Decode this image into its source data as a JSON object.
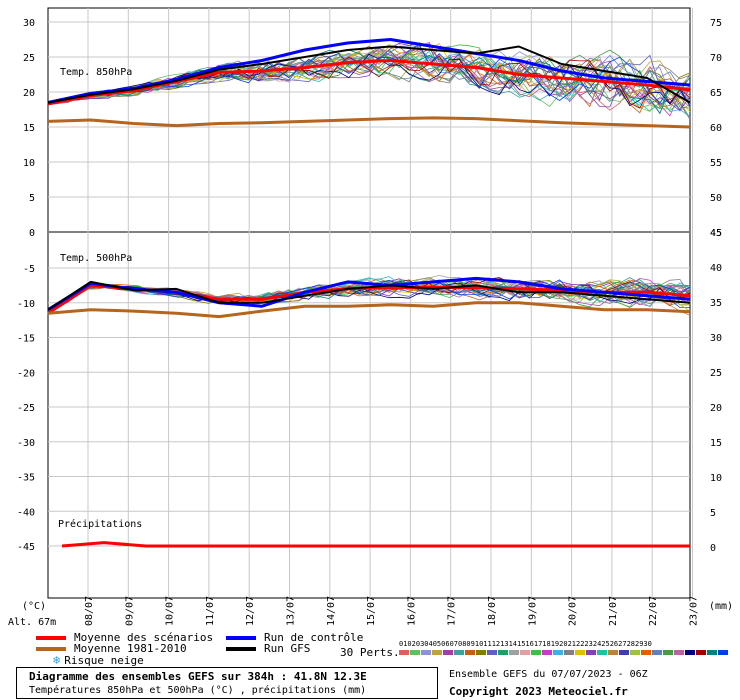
{
  "chart_data": {
    "type": "line",
    "x": [
      "08/07",
      "09/07",
      "10/07",
      "11/07",
      "12/07",
      "13/07",
      "14/07",
      "15/07",
      "16/07",
      "17/07",
      "18/07",
      "19/07",
      "20/07",
      "21/07",
      "22/07",
      "23/07"
    ],
    "panels": [
      {
        "name": "Temp. 850hPa",
        "ylabel_left": "(°C)",
        "left_range": [
          0,
          30
        ],
        "left_ticks": [
          "30",
          "25",
          "20",
          "15",
          "10",
          "5",
          "0"
        ],
        "right_ticks": [
          "75",
          "70",
          "65",
          "60",
          "55",
          "50",
          "45"
        ],
        "series": [
          {
            "name": "Moyenne des scénarios",
            "color": "#ff0000",
            "values": [
              18.3,
              19.5,
              20.2,
              21.5,
              22.8,
              23.0,
              23.5,
              24.2,
              24.5,
              24.0,
              23.5,
              22.5,
              22.0,
              21.5,
              21.0,
              20.3
            ]
          },
          {
            "name": "Moyenne 1981-2010",
            "color": "#b5651d",
            "values": [
              15.8,
              16.0,
              15.5,
              15.2,
              15.5,
              15.6,
              15.8,
              16.0,
              16.2,
              16.3,
              16.2,
              15.9,
              15.6,
              15.4,
              15.2,
              15.0
            ]
          },
          {
            "name": "Run de contrôle",
            "color": "#0000ff",
            "values": [
              18.5,
              19.8,
              20.5,
              21.8,
              23.5,
              24.5,
              26.0,
              27.0,
              27.5,
              26.5,
              25.5,
              24.5,
              23.0,
              22.0,
              21.5,
              21.0
            ]
          },
          {
            "name": "Run GFS",
            "color": "#000000",
            "values": [
              18.5,
              19.6,
              20.4,
              21.6,
              23.2,
              24.0,
              25.0,
              26.0,
              26.5,
              26.0,
              25.5,
              26.5,
              24.0,
              23.0,
              22.0,
              18.5
            ]
          }
        ]
      },
      {
        "name": "Temp. 500hPa",
        "left_range": [
          -45,
          -5
        ],
        "left_ticks": [
          "-5",
          "-10",
          "-15",
          "-20",
          "-25",
          "-30",
          "-35",
          "-40",
          "-45"
        ],
        "right_ticks": [
          "45",
          "40",
          "35",
          "30",
          "25",
          "20",
          "15",
          "10",
          "5",
          "0"
        ],
        "series": [
          {
            "name": "Moyenne des scénarios",
            "color": "#ff0000",
            "values": [
              -11.5,
              -7.5,
              -8.0,
              -8.5,
              -9.5,
              -9.5,
              -8.5,
              -8.0,
              -7.8,
              -7.8,
              -7.8,
              -8.0,
              -8.2,
              -8.5,
              -8.5,
              -9.0
            ]
          },
          {
            "name": "Moyenne 1981-2010",
            "color": "#b5651d",
            "values": [
              -11.5,
              -11.0,
              -11.2,
              -11.5,
              -12.0,
              -11.2,
              -10.5,
              -10.5,
              -10.3,
              -10.5,
              -10.0,
              -10.0,
              -10.5,
              -11.0,
              -11.0,
              -11.3
            ]
          },
          {
            "name": "Run de contrôle",
            "color": "#0000ff",
            "values": [
              -11.0,
              -7.2,
              -8.0,
              -8.5,
              -10.0,
              -10.5,
              -8.5,
              -7.0,
              -7.5,
              -7.0,
              -6.5,
              -7.0,
              -8.0,
              -8.5,
              -9.0,
              -9.5
            ]
          },
          {
            "name": "Run GFS",
            "color": "#000000",
            "values": [
              -11.0,
              -7.0,
              -8.2,
              -8.0,
              -10.0,
              -10.0,
              -9.0,
              -8.0,
              -7.5,
              -8.0,
              -7.5,
              -8.5,
              -8.5,
              -9.0,
              -9.5,
              -10.0
            ]
          }
        ]
      },
      {
        "name": "Précipitations",
        "right_unit": "(mm)",
        "values_mm": [
          0,
          0.5,
          0,
          0,
          0,
          0,
          0,
          0,
          0,
          0,
          0,
          0,
          0,
          0,
          0,
          0
        ]
      }
    ],
    "grid": true,
    "altitude": "Alt. 67m"
  },
  "legend": {
    "mean": "Moyenne des scénarios",
    "clim": "Moyenne 1981-2010",
    "snow": "Risque neige",
    "control": "Run de contrôle",
    "gfs": "Run GFS",
    "perts": "30 Perts.",
    "pert_numbers": "010203040506070809101112131415161718192021222324252627282930"
  },
  "colors": {
    "mean": "#ff0000",
    "clim": "#b5651d",
    "control": "#0000ff",
    "gfs": "#000000",
    "perturbations": [
      "#e06060",
      "#60c060",
      "#9090e0",
      "#c0a040",
      "#a040a0",
      "#40a0a0",
      "#c06020",
      "#808000",
      "#6060c0",
      "#20a060",
      "#a0a0a0",
      "#e0a0a0",
      "#40c040",
      "#c040c0",
      "#40b0e0",
      "#808080",
      "#e0c000",
      "#8040c0",
      "#20c0a0",
      "#c08040",
      "#4040a0",
      "#a0c040",
      "#e06000",
      "#6080c0",
      "#40a040",
      "#c060a0",
      "#000080",
      "#a00000",
      "#008080",
      "#0040e0"
    ]
  },
  "footer": {
    "title": "Diagramme des ensembles GEFS sur 384h : 41.8N 12.3E",
    "subtitle": "Températures 850hPa et 500hPa (°C) , précipitations (mm)",
    "run": "Ensemble GEFS du 07/07/2023 - 06Z",
    "copyright": "Copyright 2023 Meteociel.fr"
  }
}
